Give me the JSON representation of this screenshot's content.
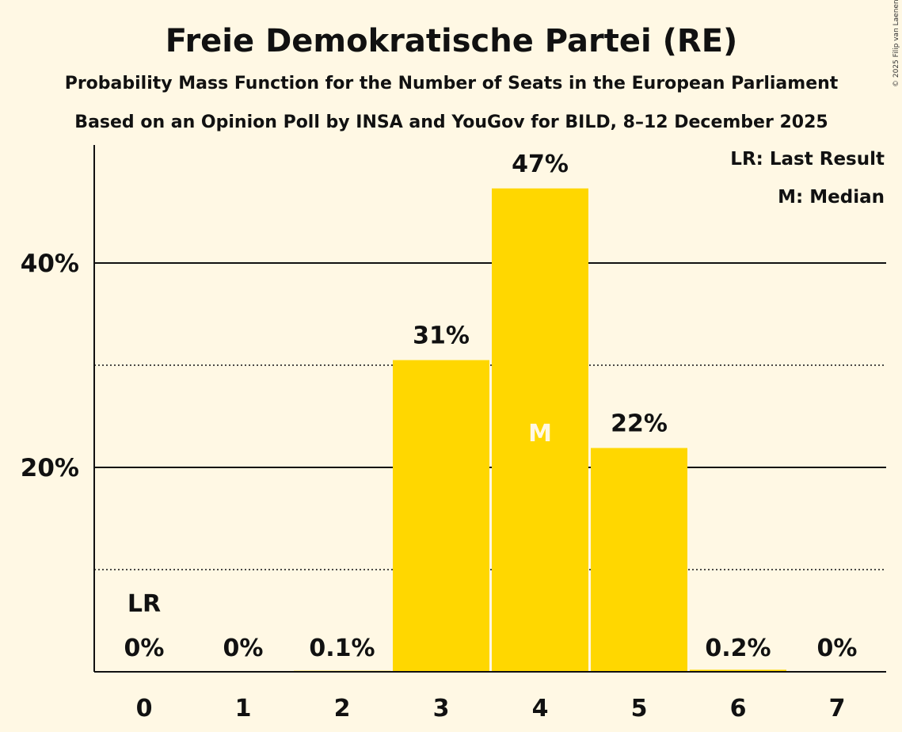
{
  "chart_data": {
    "type": "bar",
    "title": "Freie Demokratische Partei (RE)",
    "subtitle1": "Probability Mass Function for the Number of Seats in the European Parliament",
    "subtitle2": "Based on an Opinion Poll by INSA and YouGov for BILD, 8–12 December 2025",
    "categories": [
      "0",
      "1",
      "2",
      "3",
      "4",
      "5",
      "6",
      "7"
    ],
    "values": [
      0,
      0,
      0.1,
      30.5,
      47.3,
      21.9,
      0.2,
      0
    ],
    "value_labels": [
      "0%",
      "0%",
      "0.1%",
      "31%",
      "47%",
      "22%",
      "0.2%",
      "0%"
    ],
    "ylim": [
      0,
      51.5
    ],
    "yticks_major": [
      {
        "value": 20,
        "label": "20%"
      },
      {
        "value": 40,
        "label": "40%"
      }
    ],
    "yticks_minor": [
      10,
      30
    ],
    "last_result": {
      "index": 0,
      "label": "LR"
    },
    "median": {
      "index": 4,
      "label": "M"
    },
    "legend": [
      "LR: Last Result",
      "M: Median"
    ],
    "bar_color": "#FFD700",
    "copyright": "© 2025 Filip van Laenen"
  }
}
